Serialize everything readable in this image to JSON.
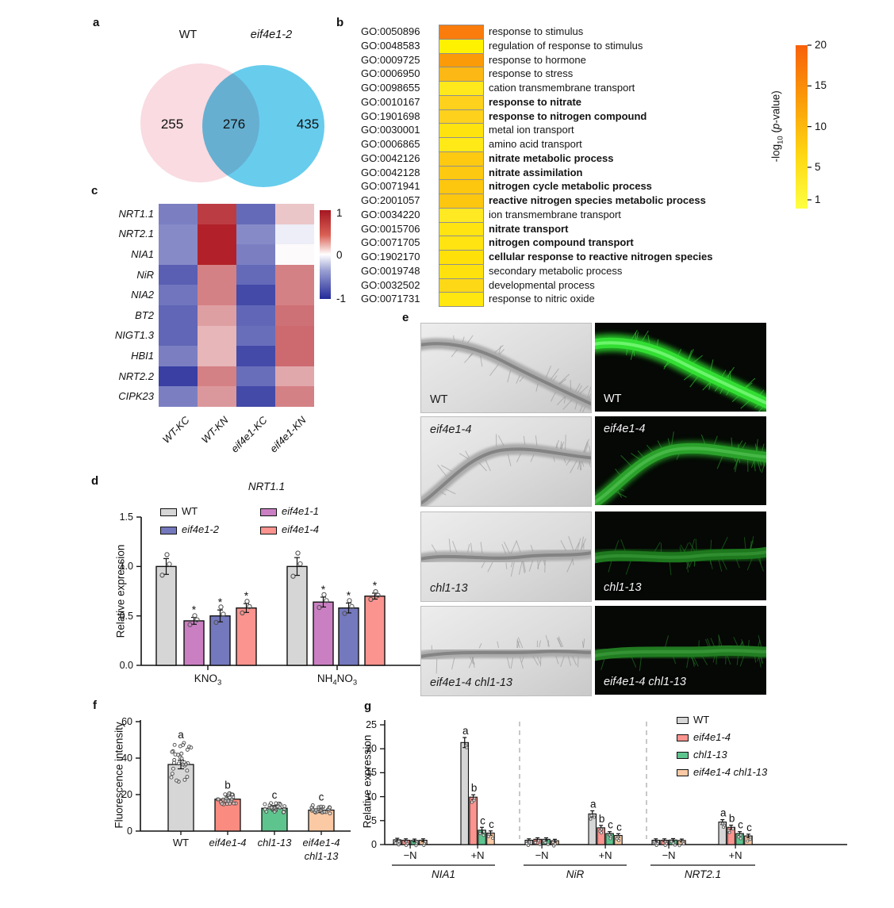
{
  "panel_labels": {
    "a": "a",
    "b": "b",
    "c": "c",
    "d": "d",
    "e": "e",
    "f": "f",
    "g": "g"
  },
  "venn": {
    "left_label": "WT",
    "right_label": "eif4e1-2",
    "left_count": "255",
    "overlap_count": "276",
    "right_count": "435",
    "left_color": "#f9dbe1",
    "right_color": "#5bc8ec"
  },
  "chart_data": {
    "go": {
      "type": "heatmap",
      "rows": [
        {
          "id": "GO:0050896",
          "term": "response to stimulus",
          "bold": false,
          "color": "#f97c0c",
          "neg_log10_p": 17
        },
        {
          "id": "GO:0048583",
          "term": "regulation of response to stimulus",
          "bold": false,
          "color": "#fff200",
          "neg_log10_p": 1.5
        },
        {
          "id": "GO:0009725",
          "term": "response to hormone",
          "bold": false,
          "color": "#fb9b07",
          "neg_log10_p": 14
        },
        {
          "id": "GO:0006950",
          "term": "response to stress",
          "bold": false,
          "color": "#fcb814",
          "neg_log10_p": 11
        },
        {
          "id": "GO:0098655",
          "term": "cation transmembrane transport",
          "bold": false,
          "color": "#ffe81c",
          "neg_log10_p": 3
        },
        {
          "id": "GO:0010167",
          "term": "response to nitrate",
          "bold": true,
          "color": "#fdd11c",
          "neg_log10_p": 8
        },
        {
          "id": "GO:1901698",
          "term": "response to nitrogen compound",
          "bold": true,
          "color": "#fdd11c",
          "neg_log10_p": 8
        },
        {
          "id": "GO:0030001",
          "term": "metal ion transport",
          "bold": false,
          "color": "#ffe30f",
          "neg_log10_p": 4.5
        },
        {
          "id": "GO:0006865",
          "term": "amino acid transport",
          "bold": false,
          "color": "#ffea18",
          "neg_log10_p": 3.5
        },
        {
          "id": "GO:0042126",
          "term": "nitrate metabolic process",
          "bold": true,
          "color": "#fdc911",
          "neg_log10_p": 8
        },
        {
          "id": "GO:0042128",
          "term": "nitrate assimilation",
          "bold": true,
          "color": "#fdc911",
          "neg_log10_p": 8
        },
        {
          "id": "GO:0071941",
          "term": "nitrogen cycle metabolic process",
          "bold": true,
          "color": "#fdc60f",
          "neg_log10_p": 8
        },
        {
          "id": "GO:2001057",
          "term": "reactive nitrogen species metabolic process",
          "bold": true,
          "color": "#fdc60f",
          "neg_log10_p": 8
        },
        {
          "id": "GO:0034220",
          "term": "ion transmembrane transport",
          "bold": false,
          "color": "#ffe922",
          "neg_log10_p": 2.5
        },
        {
          "id": "GO:0015706",
          "term": "nitrate transport",
          "bold": true,
          "color": "#ffe412",
          "neg_log10_p": 4
        },
        {
          "id": "GO:0071705",
          "term": "nitrogen compound transport",
          "bold": true,
          "color": "#ffe412",
          "neg_log10_p": 4
        },
        {
          "id": "GO:1902170",
          "term": "cellular response to reactive nitrogen species",
          "bold": true,
          "color": "#ffe009",
          "neg_log10_p": 4.5
        },
        {
          "id": "GO:0019748",
          "term": "secondary metabolic process",
          "bold": false,
          "color": "#ffe20d",
          "neg_log10_p": 4.5
        },
        {
          "id": "GO:0032502",
          "term": "developmental process",
          "bold": false,
          "color": "#fcd816",
          "neg_log10_p": 6
        },
        {
          "id": "GO:0071731",
          "term": "response to nitric oxide",
          "bold": false,
          "color": "#ffe70f",
          "neg_log10_p": 3.5
        }
      ],
      "colorbar": {
        "label_pre": "-log",
        "label_sub": "10",
        "label_mid": " (",
        "label_p": "p",
        "label_post": "-value)",
        "ticks": [
          "20",
          "15",
          "10",
          "5",
          "1"
        ],
        "top_color": "#f8610a",
        "bottom_color": "#feff43"
      }
    },
    "heatmap": {
      "type": "heatmap",
      "genes": [
        "NRT1.1",
        "NRT2.1",
        "NIA1",
        "NiR",
        "NIA2",
        "BT2",
        "NIGT1.3",
        "HBI1",
        "NRT2.2",
        "CIPK23"
      ],
      "conditions": [
        "WT-KC",
        "WT-KN",
        "eif4e1-KC",
        "eif4e1-KN"
      ],
      "values": [
        [
          -0.6,
          0.85,
          -0.7,
          0.25
        ],
        [
          -0.55,
          0.97,
          -0.55,
          -0.08
        ],
        [
          -0.55,
          0.97,
          -0.6,
          0.02
        ],
        [
          -0.75,
          0.55,
          -0.7,
          0.55
        ],
        [
          -0.65,
          0.55,
          -0.85,
          0.55
        ],
        [
          -0.72,
          0.42,
          -0.72,
          0.62
        ],
        [
          -0.72,
          0.32,
          -0.68,
          0.65
        ],
        [
          -0.6,
          0.32,
          -0.85,
          0.65
        ],
        [
          -0.9,
          0.55,
          -0.68,
          0.38
        ],
        [
          -0.6,
          0.45,
          -0.85,
          0.55
        ]
      ],
      "colorbar_ticks": [
        "1",
        "0",
        "-1"
      ],
      "pos_color": "#b01a22",
      "neg_color": "#232a99"
    },
    "nrt11": {
      "type": "bar",
      "title": "NRT1.1",
      "ylabel": "Relative expression",
      "yticks": [
        "0.0",
        "0.5",
        "1.0",
        "1.5"
      ],
      "ylim": [
        0,
        1.5
      ],
      "legend": [
        {
          "label": "WT",
          "color": "#d6d6d6",
          "italic": false
        },
        {
          "label": "eif4e1-1",
          "color": "#cb7fc3",
          "italic": true
        },
        {
          "label": "eif4e1-2",
          "color": "#7478bd",
          "italic": true
        },
        {
          "label": "eif4e1-4",
          "color": "#fb938e",
          "italic": true
        }
      ],
      "series_order": [
        "WT",
        "eif4e1-1",
        "eif4e1-2",
        "eif4e1-4"
      ],
      "series_colors": [
        "#d6d6d6",
        "#cb7fc3",
        "#7478bd",
        "#fb938e"
      ],
      "groups": [
        {
          "label_parts": [
            {
              "t": "KNO"
            },
            {
              "sub": "3"
            }
          ],
          "values": [
            1.0,
            0.45,
            0.5,
            0.58
          ],
          "errors": [
            0.08,
            0.035,
            0.06,
            0.045
          ],
          "sig": [
            "",
            "*",
            "*",
            "*"
          ]
        },
        {
          "label_parts": [
            {
              "t": "NH"
            },
            {
              "sub": "4"
            },
            {
              "t": "NO"
            },
            {
              "sub": "3"
            }
          ],
          "values": [
            1.0,
            0.64,
            0.58,
            0.7
          ],
          "errors": [
            0.09,
            0.05,
            0.05,
            0.03
          ],
          "sig": [
            "",
            "*",
            "*",
            "*"
          ]
        }
      ]
    },
    "fluorescence": {
      "type": "bar",
      "ylabel": "Fluorescence intensity",
      "yticks": [
        "0",
        "20",
        "40",
        "60"
      ],
      "ylim": [
        0,
        60
      ],
      "bars": [
        {
          "label_lines": [
            "WT"
          ],
          "italic": false,
          "color": "#d6d6d6",
          "value": 36.5,
          "error": 1.5,
          "letter": "a"
        },
        {
          "label_lines": [
            "eif4e1-4"
          ],
          "italic": true,
          "color": "#f98b80",
          "value": 17.5,
          "error": 0.8,
          "letter": "b"
        },
        {
          "label_lines": [
            "chl1-13"
          ],
          "italic": true,
          "color": "#5ec48e",
          "value": 12.5,
          "error": 0.6,
          "letter": "c"
        },
        {
          "label_lines": [
            "eif4e1-4",
            "chl1-13"
          ],
          "italic": true,
          "color": "#fbc9a4",
          "value": 11.5,
          "error": 0.5,
          "letter": "c"
        }
      ]
    },
    "expression": {
      "type": "bar",
      "ylabel": "Relative expression",
      "yticks": [
        "0",
        "5",
        "10",
        "15",
        "20",
        "25"
      ],
      "ylim": [
        0,
        25
      ],
      "legend": [
        {
          "label": "WT",
          "color": "#d6d6d6",
          "italic": false
        },
        {
          "label": "eif4e1-4",
          "color": "#fb938e",
          "italic": true
        },
        {
          "label": "chl1-13",
          "color": "#5ec48e",
          "italic": true
        },
        {
          "label": "eif4e1-4 chl1-13",
          "color": "#fbc9a4",
          "italic": true
        }
      ],
      "conditions": [
        "−N",
        "+N"
      ],
      "genes": [
        {
          "name": "NIA1",
          "minus": [
            1.0,
            0.9,
            0.85,
            0.9
          ],
          "plus": [
            21.3,
            9.9,
            3.0,
            2.4
          ],
          "minus_err": [
            0.06,
            0.05,
            0.05,
            0.05
          ],
          "plus_err": [
            0.8,
            0.25,
            0.35,
            0.2
          ],
          "letters": [
            "a",
            "b",
            "c",
            "c"
          ]
        },
        {
          "name": "NiR",
          "minus": [
            0.9,
            1.1,
            1.1,
            0.8
          ],
          "plus": [
            6.4,
            3.5,
            2.3,
            1.9
          ],
          "minus_err": [
            0.05,
            0.06,
            0.06,
            0.05
          ],
          "plus_err": [
            0.4,
            0.25,
            0.15,
            0.12
          ],
          "letters": [
            "a",
            "b",
            "c",
            "c"
          ]
        },
        {
          "name": "NRT2.1",
          "minus": [
            0.9,
            0.9,
            0.95,
            0.85
          ],
          "plus": [
            4.7,
            3.6,
            2.3,
            1.8
          ],
          "minus_err": [
            0.05,
            0.05,
            0.05,
            0.05
          ],
          "plus_err": [
            0.25,
            0.2,
            0.15,
            0.12
          ],
          "letters": [
            "a",
            "b",
            "c",
            "c"
          ]
        }
      ]
    }
  },
  "microscopy": {
    "labels": [
      "WT",
      "eif4e1-4",
      "chl1-13",
      "eif4e1-4 chl1-13"
    ],
    "italic": [
      false,
      true,
      true,
      true
    ],
    "label_position": [
      "bottom",
      "top",
      "bottom",
      "bottom"
    ],
    "fluorescence_levels": [
      1.0,
      0.55,
      0.3,
      0.32
    ]
  }
}
